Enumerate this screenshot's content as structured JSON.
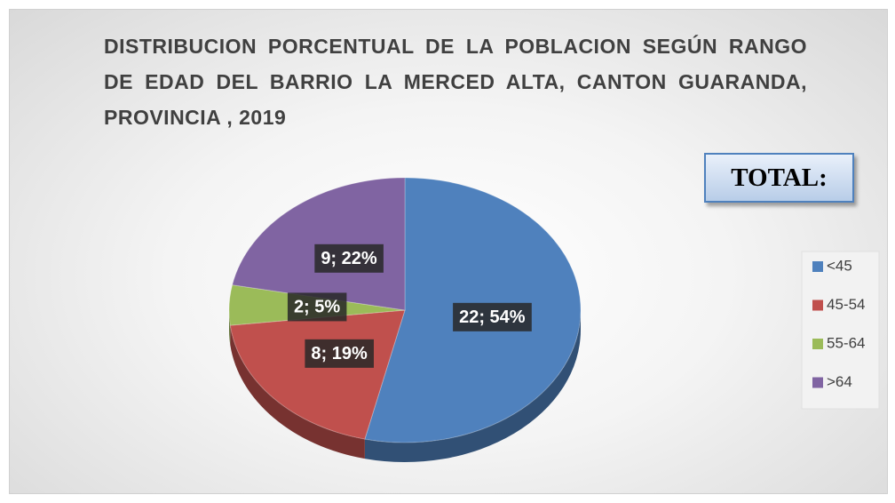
{
  "chart_data": {
    "type": "pie",
    "title": "DISTRIBUCION PORCENTUAL DE LA POBLACION SEGÚN RANGO DE EDAD DEL BARRIO LA MERCED ALTA, CANTON GUARANDA, PROVINCIA , 2019",
    "annotation": "TOTAL:",
    "categories": [
      "<45",
      "45-54",
      "55-64",
      ">64"
    ],
    "values": [
      22,
      8,
      2,
      9
    ],
    "value_labels": [
      "22; 54%",
      "8; 19%",
      "2; 5%",
      "9; 22%"
    ],
    "colors": [
      "#4f81bd",
      "#c0504d",
      "#9bbb59",
      "#8064a2"
    ],
    "legend": "right"
  }
}
